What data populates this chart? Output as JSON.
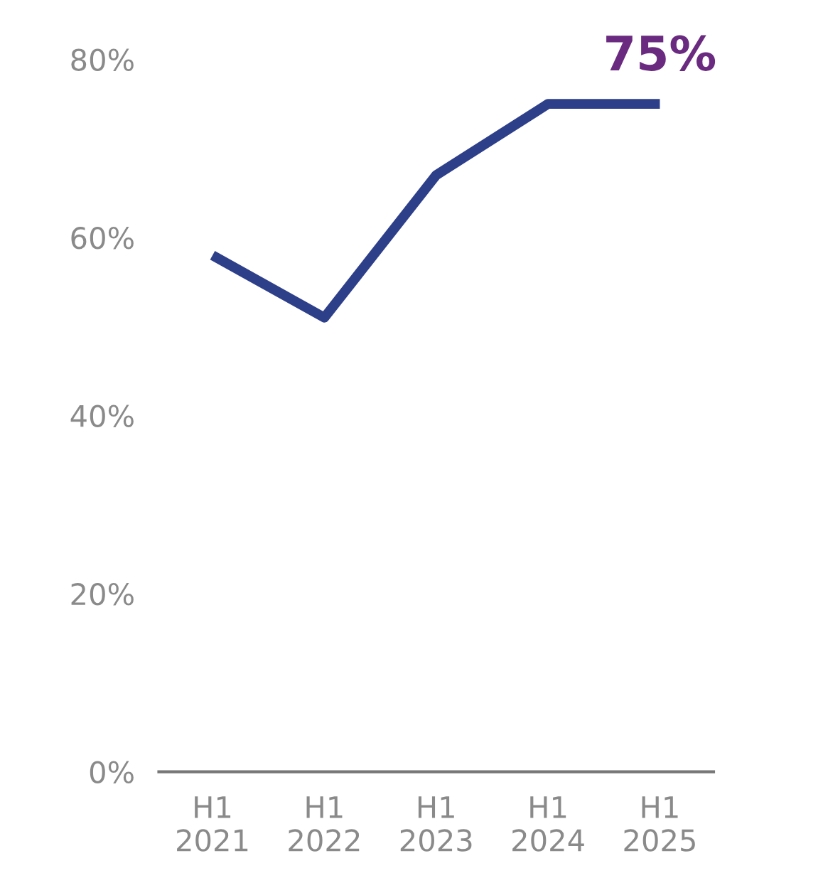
{
  "chart_data": {
    "type": "line",
    "categories": [
      "H1\n2021",
      "H1\n2022",
      "H1\n2023",
      "H1\n2024",
      "H1\n2025"
    ],
    "series": [
      {
        "color": "#2e3f8a",
        "values": [
          58,
          51,
          67,
          75,
          75
        ]
      }
    ],
    "ylim": [
      0,
      80
    ],
    "yticks": [
      {
        "value": 0,
        "label": "0%"
      },
      {
        "value": 20,
        "label": "20%"
      },
      {
        "value": 40,
        "label": "40%"
      },
      {
        "value": 60,
        "label": "60%"
      },
      {
        "value": 80,
        "label": "80%"
      }
    ],
    "annotations": [
      {
        "text": "75%",
        "x": "H1\n2025",
        "y": 75
      }
    ],
    "grid": false,
    "legend": false,
    "marker": "none",
    "line_style": "solid"
  }
}
